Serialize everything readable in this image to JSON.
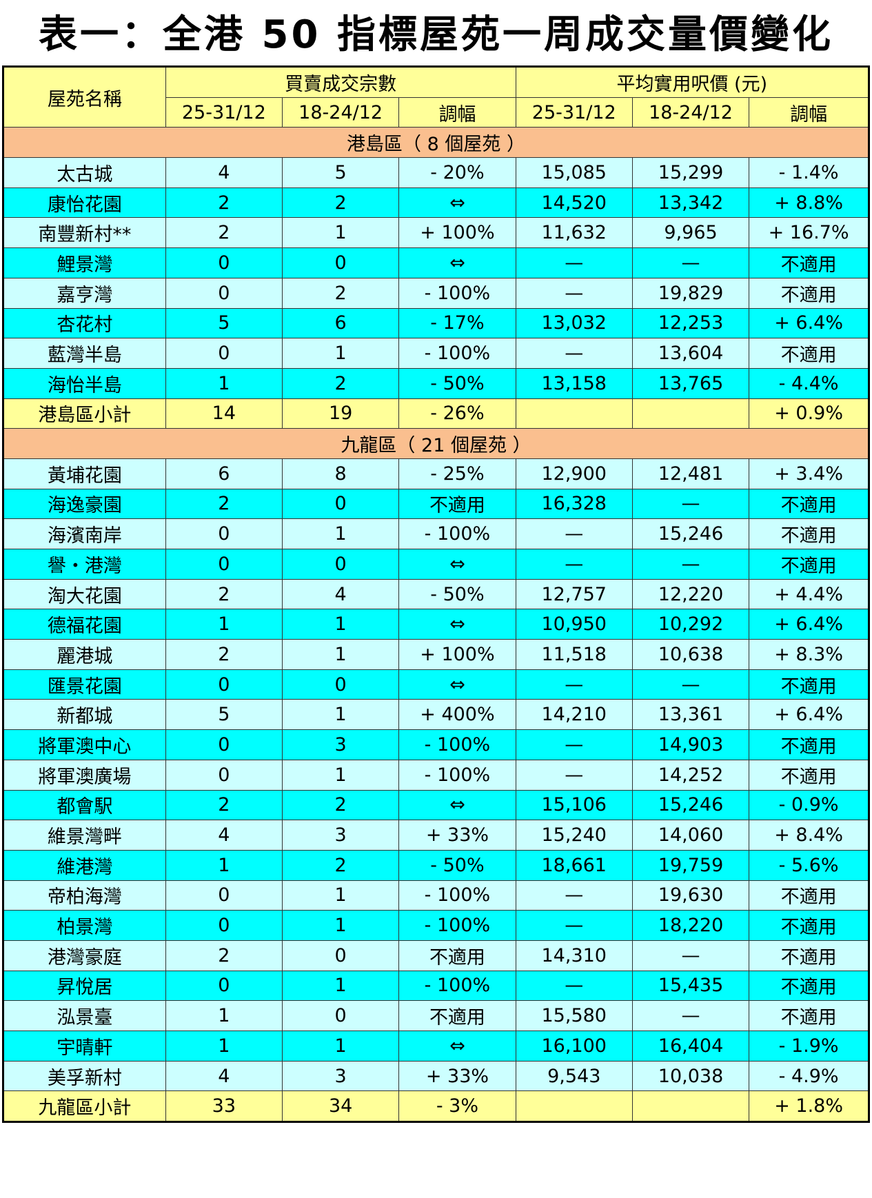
{
  "title": "表一：全港 50 指標屋苑一周成交量價變化",
  "header": {
    "estate_col": "屋苑名稱",
    "volume_group": "買賣成交宗數",
    "price_group": "平均實用呎價 (元)",
    "sub": [
      "25-31/12",
      "18-24/12",
      "調幅",
      "25-31/12",
      "18-24/12",
      "調幅"
    ]
  },
  "regions": [
    {
      "label": "港島區（ 8 個屋苑 ）",
      "rows": [
        [
          "太古城",
          "4",
          "5",
          "- 20%",
          "15,085",
          "15,299",
          "- 1.4%"
        ],
        [
          "康怡花園",
          "2",
          "2",
          "⇔",
          "14,520",
          "13,342",
          "+ 8.8%"
        ],
        [
          "南豐新村**",
          "2",
          "1",
          "+ 100%",
          "11,632",
          "9,965",
          "+ 16.7%"
        ],
        [
          "鯉景灣",
          "0",
          "0",
          "⇔",
          "—",
          "—",
          "不適用"
        ],
        [
          "嘉亨灣",
          "0",
          "2",
          "- 100%",
          "—",
          "19,829",
          "不適用"
        ],
        [
          "杏花村",
          "5",
          "6",
          "- 17%",
          "13,032",
          "12,253",
          "+ 6.4%"
        ],
        [
          "藍灣半島",
          "0",
          "1",
          "- 100%",
          "—",
          "13,604",
          "不適用"
        ],
        [
          "海怡半島",
          "1",
          "2",
          "- 50%",
          "13,158",
          "13,765",
          "- 4.4%"
        ]
      ],
      "subtotal": [
        "港島區小計",
        "14",
        "19",
        "- 26%",
        "",
        "",
        "+ 0.9%"
      ]
    },
    {
      "label": "九龍區（ 21 個屋苑 ）",
      "rows": [
        [
          "黃埔花園",
          "6",
          "8",
          "- 25%",
          "12,900",
          "12,481",
          "+ 3.4%"
        ],
        [
          "海逸豪園",
          "2",
          "0",
          "不適用",
          "16,328",
          "—",
          "不適用"
        ],
        [
          "海濱南岸",
          "0",
          "1",
          "- 100%",
          "—",
          "15,246",
          "不適用"
        ],
        [
          "譽・港灣",
          "0",
          "0",
          "⇔",
          "—",
          "—",
          "不適用"
        ],
        [
          "淘大花園",
          "2",
          "4",
          "- 50%",
          "12,757",
          "12,220",
          "+ 4.4%"
        ],
        [
          "德福花園",
          "1",
          "1",
          "⇔",
          "10,950",
          "10,292",
          "+ 6.4%"
        ],
        [
          "麗港城",
          "2",
          "1",
          "+ 100%",
          "11,518",
          "10,638",
          "+ 8.3%"
        ],
        [
          "匯景花園",
          "0",
          "0",
          "⇔",
          "—",
          "—",
          "不適用"
        ],
        [
          "新都城",
          "5",
          "1",
          "+ 400%",
          "14,210",
          "13,361",
          "+ 6.4%"
        ],
        [
          "將軍澳中心",
          "0",
          "3",
          "- 100%",
          "—",
          "14,903",
          "不適用"
        ],
        [
          "將軍澳廣場",
          "0",
          "1",
          "- 100%",
          "—",
          "14,252",
          "不適用"
        ],
        [
          "都會駅",
          "2",
          "2",
          "⇔",
          "15,106",
          "15,246",
          "- 0.9%"
        ],
        [
          "維景灣畔",
          "4",
          "3",
          "+ 33%",
          "15,240",
          "14,060",
          "+ 8.4%"
        ],
        [
          "維港灣",
          "1",
          "2",
          "- 50%",
          "18,661",
          "19,759",
          "- 5.6%"
        ],
        [
          "帝柏海灣",
          "0",
          "1",
          "- 100%",
          "—",
          "19,630",
          "不適用"
        ],
        [
          "柏景灣",
          "0",
          "1",
          "- 100%",
          "—",
          "18,220",
          "不適用"
        ],
        [
          "港灣豪庭",
          "2",
          "0",
          "不適用",
          "14,310",
          "—",
          "不適用"
        ],
        [
          "昇悅居",
          "0",
          "1",
          "- 100%",
          "—",
          "15,435",
          "不適用"
        ],
        [
          "泓景臺",
          "1",
          "0",
          "不適用",
          "15,580",
          "—",
          "不適用"
        ],
        [
          "宇晴軒",
          "1",
          "1",
          "⇔",
          "16,100",
          "16,404",
          "- 1.9%"
        ],
        [
          "美孚新村",
          "4",
          "3",
          "+ 33%",
          "9,543",
          "10,038",
          "- 4.9%"
        ]
      ],
      "subtotal": [
        "九龍區小計",
        "33",
        "34",
        "- 3%",
        "",
        "",
        "+ 1.8%"
      ]
    }
  ]
}
